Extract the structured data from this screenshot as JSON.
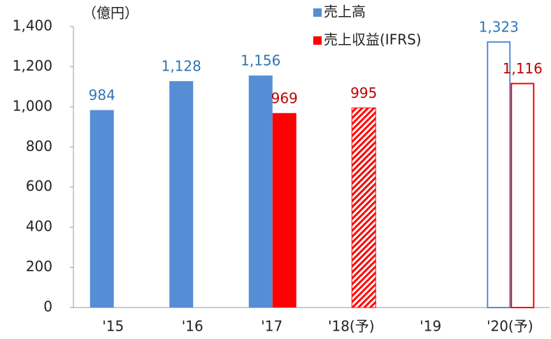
{
  "chart_data": {
    "type": "bar",
    "y_axis_label": "（億円）",
    "categories": [
      "'15",
      "'16",
      "'17",
      "'18(予)",
      "'19",
      "'20(予)"
    ],
    "series": [
      {
        "name": "売上高",
        "color": "#558ed5",
        "label_color": "#2e75b6",
        "values": [
          984,
          1128,
          1156,
          null,
          null,
          1323
        ],
        "value_labels": [
          "984",
          "1,128",
          "1,156",
          null,
          null,
          "1,323"
        ],
        "styles": [
          "solid",
          "solid",
          "solid",
          null,
          null,
          "outline"
        ]
      },
      {
        "name": "売上収益(IFRS)",
        "color": "#ff0000",
        "label_color": "#c00000",
        "values": [
          null,
          null,
          969,
          995,
          null,
          1116
        ],
        "value_labels": [
          null,
          null,
          "969",
          "995",
          null,
          "1,116"
        ],
        "styles": [
          null,
          null,
          "solid",
          "hatched",
          null,
          "outline"
        ]
      }
    ],
    "ylim": [
      0,
      1400
    ],
    "yticks": [
      0,
      200,
      400,
      600,
      800,
      {
        "value": 1000,
        "label": "1,000"
      },
      {
        "value": 1200,
        "label": "1,200"
      },
      {
        "value": 1400,
        "label": "1,400"
      }
    ],
    "grid": false
  }
}
